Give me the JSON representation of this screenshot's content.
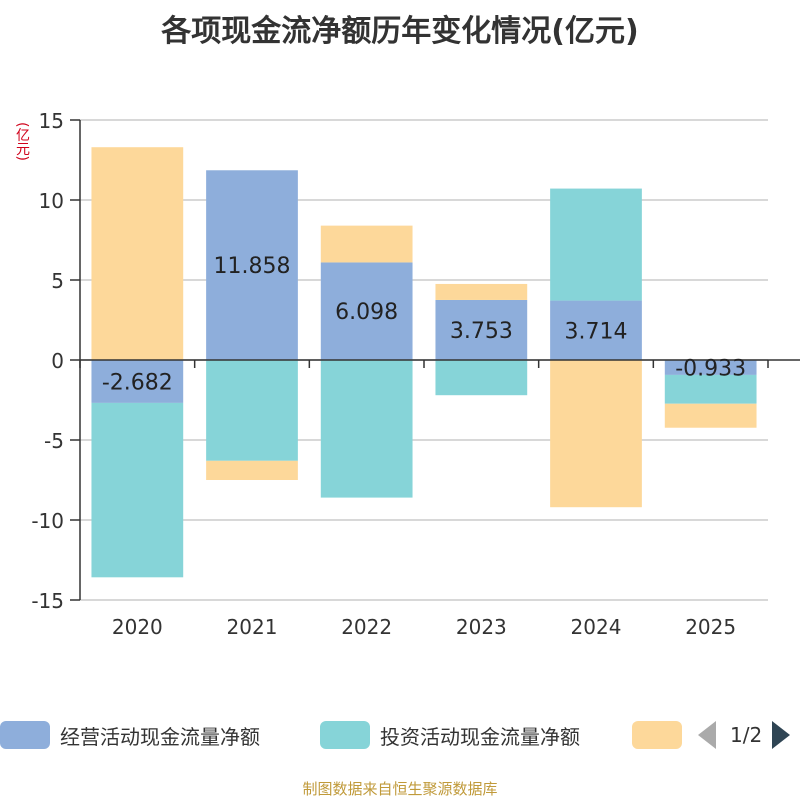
{
  "chart_data": {
    "type": "bar",
    "stacked": true,
    "title": "各项现金流净额历年变化情况(亿元)",
    "ylabel": "(亿元)",
    "ylim": [
      -15,
      15
    ],
    "yticks": [
      15,
      10,
      5,
      0,
      -5,
      -10,
      -15
    ],
    "categories": [
      "2020",
      "2021",
      "2022",
      "2023",
      "2024",
      "2025"
    ],
    "series": [
      {
        "name": "经营活动现金流量净额",
        "color": "#8eaedb",
        "values": [
          -2.682,
          11.858,
          6.098,
          3.753,
          3.714,
          -0.933
        ],
        "labels": [
          "-2.682",
          "11.858",
          "6.098",
          "3.753",
          "3.714",
          "-0.933"
        ]
      },
      {
        "name": "投资活动现金流量净额",
        "color": "#86d4d8",
        "values": [
          -10.9,
          -6.3,
          -8.6,
          -2.2,
          7.0,
          -1.8
        ]
      },
      {
        "name": "",
        "color": "#fdd89a",
        "values": [
          13.3,
          -1.2,
          2.3,
          1.0,
          -9.2,
          -1.5
        ]
      }
    ]
  },
  "legend": {
    "page": "1/2"
  },
  "footer": {
    "source": "制图数据来自恒生聚源数据库"
  }
}
